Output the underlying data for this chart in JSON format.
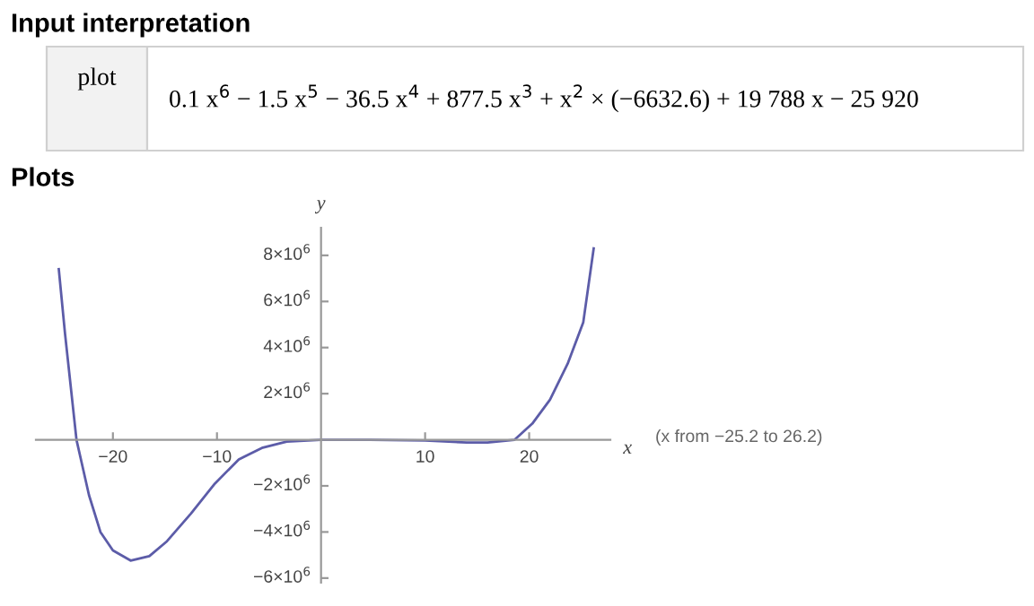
{
  "chart_data": {
    "type": "line",
    "title": "Input interpretation",
    "subtitle": "Plots",
    "xlabel": "x",
    "ylabel": "y",
    "annotations": [
      "plot",
      "0.1 x$^{6}$ − 1.5 x$^{5}$ − 36.5 x$^{4}$ + 877.5 x$^{3}$ + x$^{2}$ × (−6632.6) + 19 788 x − 25 920",
      "(x from −25.2 to 26.2)"
    ],
    "x": [
      -25.2,
      -24.6,
      -23.5,
      -22.3,
      -21.2,
      -20,
      -18.3,
      -16.5,
      -14.8,
      -12.5,
      -10.2,
      -7.9,
      -5.6,
      -3.3,
      0,
      4.7,
      10,
      14,
      16,
      18.6,
      20.3,
      22,
      23.7,
      25.2,
      26.2
    ],
    "series": [
      {
        "color": "#5c5ca8",
        "values": [
          7400000,
          4600000,
          0,
          -2400000,
          -4000000,
          -4800000,
          -5240000,
          -5050000,
          -4400000,
          -3200000,
          -1900000,
          -850000,
          -340000,
          -80000,
          0,
          0,
          -30000,
          -120000,
          -120000,
          0,
          700000,
          1740000,
          3300000,
          5100000,
          8300000
        ]
      }
    ],
    "xlim": [
      -27.4,
      27.8
    ],
    "ylim": [
      -6200000,
      9200000
    ],
    "xticks": [
      -20,
      -10,
      10,
      20
    ],
    "yticks": [
      {
        "value": -6000000,
        "label": "−6×10$^{6}$"
      },
      {
        "value": -4000000,
        "label": "−4×10$^{6}$"
      },
      {
        "value": -2000000,
        "label": "−2×10$^{6}$"
      },
      {
        "value": 2000000,
        "label": "2×10$^{6}$"
      },
      {
        "value": 4000000,
        "label": "4×10$^{6}$"
      },
      {
        "value": 6000000,
        "label": "6×10$^{6}$"
      },
      {
        "value": 8000000,
        "label": "8×10$^{6}$"
      }
    ],
    "grid": false,
    "legend": false,
    "marker": "none",
    "line_style": "solid"
  }
}
